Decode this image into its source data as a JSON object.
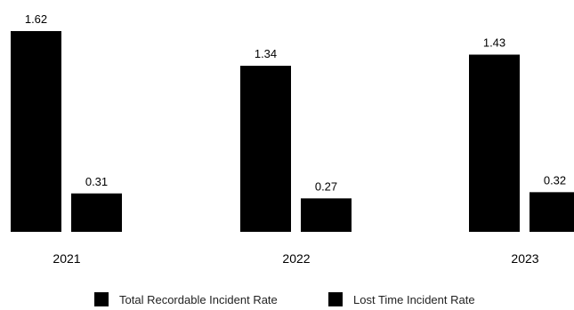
{
  "chart_data": {
    "type": "bar",
    "categories": [
      "2021",
      "2022",
      "2023"
    ],
    "series": [
      {
        "name": "Total Recordable Incident Rate",
        "values": [
          1.62,
          1.34,
          1.43
        ],
        "color": "#000000"
      },
      {
        "name": "Lost Time Incident Rate",
        "values": [
          0.31,
          0.27,
          0.32
        ],
        "color": "#000000"
      }
    ],
    "value_labels": {
      "Total Recordable Incident Rate": [
        "1.62",
        "1.34",
        "1.43"
      ],
      "Lost Time Incident Rate": [
        "0.31",
        "0.27",
        "0.32"
      ]
    },
    "ylim": [
      0,
      1.62
    ],
    "grid": false,
    "legend_position": "bottom"
  }
}
